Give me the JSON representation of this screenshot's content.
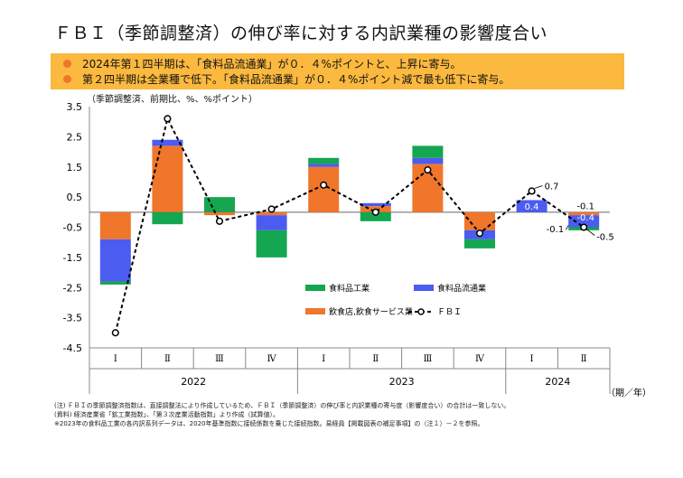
{
  "title": "ＦＢＩ（季節調整済）の伸び率に対する内訳業種の影響度合い",
  "bullets": [
    "2024年第１四半期は、「食料品流通業」が０．４%ポイントと、上昇に寄与。",
    "第２四半期は全業種で低下。「食料品流通業」が０．４%ポイント減で最も低下に寄与。"
  ],
  "unit_label": "（季節調整済、前期比、%、%ポイント）",
  "notes": [
    "(注) ＦＢＩの季節調整済指数は、直接調整法により作成しているため、ＦＢＩ（季節調整済）の伸び率と内訳業種の寄与度（影響度合い）の合計は一致しない。",
    "(資料) 経済産業省「鉱工業指数」、「第３次産業活動指数」より作成（試算値）。",
    "※2023年の食料品工業の各内訳系列データは、2020年基準指数に接続係数を乗じた接続指数。易経員【掲載図表の補足事項】の（注１）－２を参照。"
  ],
  "chart_data": {
    "type": "bar",
    "stacked": true,
    "ylim": [
      -4.5,
      3.5
    ],
    "yticks": [
      "3.5",
      "2.5",
      "1.5",
      "0.5",
      "-0.5",
      "-1.5",
      "-2.5",
      "-3.5",
      "-4.5"
    ],
    "ytick_values": [
      3.5,
      2.5,
      1.5,
      0.5,
      -0.5,
      -1.5,
      -2.5,
      -3.5,
      -4.5
    ],
    "categories": [
      "Ⅰ",
      "Ⅱ",
      "Ⅲ",
      "Ⅳ",
      "Ⅰ",
      "Ⅱ",
      "Ⅲ",
      "Ⅳ",
      "Ⅰ",
      "Ⅱ"
    ],
    "years": [
      "2022",
      "2023",
      "2024"
    ],
    "xlabel": "（期／年）",
    "series": [
      {
        "name": "飲食店,飲食サービス業",
        "color": "#F0762B",
        "values": [
          -0.9,
          2.2,
          -0.1,
          -0.1,
          1.5,
          0.2,
          1.6,
          -0.6,
          0.0,
          -0.1
        ]
      },
      {
        "name": "食料品流通業",
        "color": "#4B5CF0",
        "values": [
          -1.4,
          0.2,
          0.0,
          -0.5,
          0.1,
          0.1,
          0.2,
          -0.3,
          0.4,
          -0.4
        ]
      },
      {
        "name": "食料品工業",
        "color": "#14A650",
        "values": [
          -0.1,
          -0.4,
          0.5,
          -0.9,
          0.2,
          -0.3,
          0.4,
          -0.3,
          0.0,
          -0.1
        ]
      }
    ],
    "line": {
      "name": "ＦＢＩ",
      "values": [
        -4.0,
        3.1,
        -0.3,
        0.1,
        0.9,
        0.0,
        1.4,
        -0.7,
        0.7,
        -0.5
      ]
    },
    "annotations": [
      {
        "text": "0.7",
        "index": 8,
        "kind": "line"
      },
      {
        "text": "0.4",
        "index": 8,
        "kind": "bar"
      },
      {
        "text": "-0.1",
        "index": 9,
        "kind": "top"
      },
      {
        "text": "-0.4",
        "index": 9,
        "kind": "bar"
      },
      {
        "text": "-0.1",
        "index": 9,
        "kind": "bottom"
      },
      {
        "text": "-0.5",
        "index": 9,
        "kind": "line"
      }
    ],
    "legend": [
      "食料品工業",
      "食料品流通業",
      "飲食店,飲食サービス業",
      "ＦＢＩ"
    ]
  }
}
